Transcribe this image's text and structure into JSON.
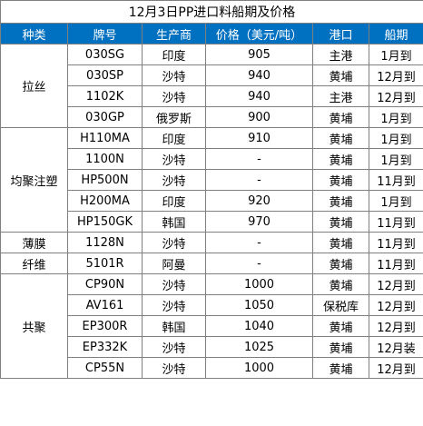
{
  "title": "12月3日PP进口料船期及价格",
  "headers": [
    "种类",
    "牌号",
    "生产商",
    "价格（美元/吨）",
    "港口",
    "船期"
  ],
  "groups": [
    {
      "category": "拉丝",
      "rows": [
        [
          "030SG",
          "印度",
          "905",
          "主港",
          "1月到"
        ],
        [
          "030SP",
          "沙特",
          "940",
          "黄埔",
          "12月到"
        ],
        [
          "1102K",
          "沙特",
          "940",
          "主港",
          "12月到"
        ],
        [
          "030GP",
          "俄罗斯",
          "900",
          "黄埔",
          "1月到"
        ]
      ]
    },
    {
      "category": "均聚注塑",
      "rows": [
        [
          "H110MA",
          "印度",
          "910",
          "黄埔",
          "1月到"
        ],
        [
          "1100N",
          "沙特",
          "-",
          "黄埔",
          "1月到"
        ],
        [
          "HP500N",
          "沙特",
          "-",
          "黄埔",
          "11月到"
        ],
        [
          "H200MA",
          "印度",
          "920",
          "黄埔",
          "1月到"
        ],
        [
          "HP150GK",
          "韩国",
          "970",
          "黄埔",
          "11月到"
        ]
      ]
    },
    {
      "category": "薄膜",
      "rows": [
        [
          "1128N",
          "沙特",
          "-",
          "黄埔",
          "11月到"
        ]
      ]
    },
    {
      "category": "纤维",
      "rows": [
        [
          "5101R",
          "阿曼",
          "-",
          "黄埔",
          "11月到"
        ]
      ]
    },
    {
      "category": "共聚",
      "rows": [
        [
          "CP90N",
          "沙特",
          "1000",
          "黄埔",
          "12月到"
        ],
        [
          "AV161",
          "沙特",
          "1050",
          "保税库",
          "12月到"
        ],
        [
          "EP300R",
          "韩国",
          "1040",
          "黄埔",
          "12月到"
        ],
        [
          "EP332K",
          "沙特",
          "1025",
          "黄埔",
          "12月装"
        ],
        [
          "CP55N",
          "沙特",
          "1000",
          "黄埔",
          "12月到"
        ]
      ]
    }
  ]
}
